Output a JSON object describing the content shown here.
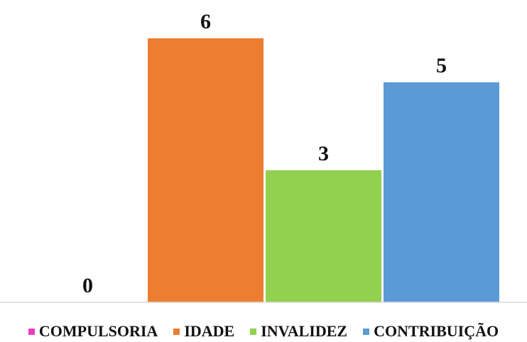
{
  "chart_data": {
    "type": "bar",
    "categories": [
      "COMPULSORIA",
      "IDADE",
      "INVALIDEZ",
      "CONTRIBUIÇÃO"
    ],
    "values": [
      0,
      6,
      3,
      5
    ],
    "colors": [
      "#E83FBE",
      "#ED7D31",
      "#92D050",
      "#5B9BD5"
    ],
    "title": "",
    "xlabel": "",
    "ylabel": "",
    "ylim": [
      0,
      6
    ],
    "grid": false,
    "data_labels": true,
    "legend_position": "bottom"
  }
}
